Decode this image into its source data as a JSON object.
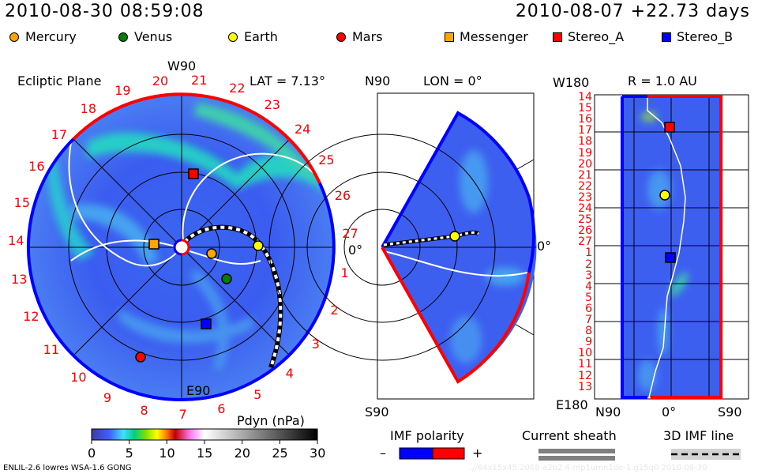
{
  "header": {
    "datetime": "2010-08-30 08:59:08",
    "reference": "2010-08-07 +22.73 days"
  },
  "legend": [
    {
      "label": "Mercury",
      "color": "#ffa500",
      "shape": "circle"
    },
    {
      "label": "Venus",
      "color": "#008000",
      "shape": "circle"
    },
    {
      "label": "Earth",
      "color": "#ffff00",
      "shape": "circle"
    },
    {
      "label": "Mars",
      "color": "#ff0000",
      "shape": "circle"
    },
    {
      "label": "Messenger",
      "color": "#ffa500",
      "shape": "square"
    },
    {
      "label": "Stereo_A",
      "color": "#ff0000",
      "shape": "square"
    },
    {
      "label": "Stereo_B",
      "color": "#0000ff",
      "shape": "square"
    }
  ],
  "ecliptic": {
    "title": "Ecliptic Plane",
    "top_label": "W90",
    "bottom_label": "E90",
    "right_label": "0°",
    "lat": "LAT = 7.13°",
    "day_labels": [
      "1",
      "2",
      "3",
      "4",
      "5",
      "6",
      "7",
      "8",
      "9",
      "10",
      "11",
      "12",
      "13",
      "14",
      "15",
      "16",
      "17",
      "18",
      "19",
      "20",
      "21",
      "22",
      "23",
      "24",
      "25",
      "26",
      "27"
    ]
  },
  "meridional": {
    "top_left": "N90",
    "lon": "LON = 0°",
    "bottom_left": "S90",
    "right_label": "0°"
  },
  "radial": {
    "title": "R = 1.0 AU",
    "top_left": "W180",
    "bottom_left": "E180",
    "x_labels": [
      "N90",
      "0°",
      "S90"
    ],
    "day_labels": [
      "14",
      "15",
      "16",
      "17",
      "18",
      "19",
      "20",
      "21",
      "22",
      "23",
      "24",
      "25",
      "26",
      "27",
      "1",
      "2",
      "3",
      "4",
      "5",
      "6",
      "7",
      "8",
      "9",
      "10",
      "11",
      "12",
      "13"
    ]
  },
  "colorbar": {
    "title": "Pdyn (nPa)",
    "ticks": [
      "0",
      "5",
      "10",
      "15",
      "20",
      "25",
      "30"
    ],
    "range": [
      0,
      30
    ]
  },
  "imf": {
    "title": "IMF polarity",
    "minus": "–",
    "plus": "+",
    "neg_color": "#0000ff",
    "pos_color": "#ff0000"
  },
  "sheath": {
    "title": "Current sheath"
  },
  "imf_line": {
    "title": "3D IMF line"
  },
  "footer": {
    "model": "ENLIL-2.6 lowres WSA-1.6 GONG",
    "run": ".//64x15x45.2068-a2b2.4-mp1umn1de-1.g15q0   2010-08-30"
  }
}
